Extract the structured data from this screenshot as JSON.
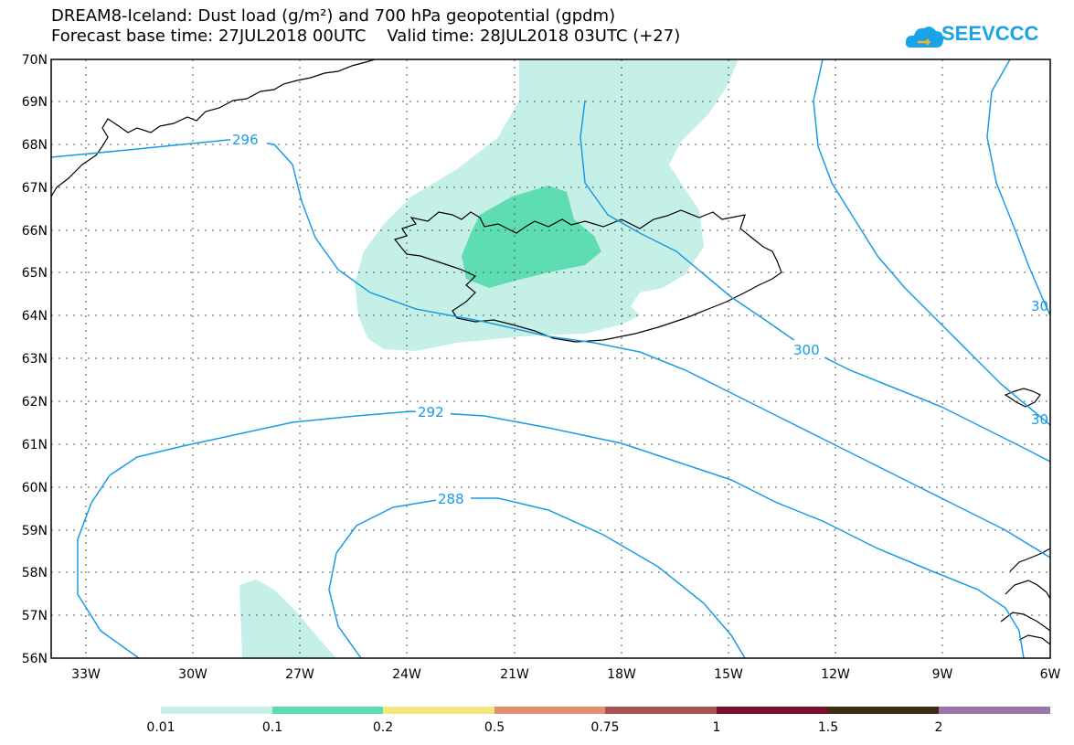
{
  "title": {
    "line1": "DREAM8-Iceland: Dust load (g/m²) and 700 hPa geopotential (gpdm)",
    "line2": "Forecast base time: 27JUL2018 00UTC    Valid time: 28JUL2018 03UTC (+27)"
  },
  "logo": {
    "text": "SEEVCCC"
  },
  "map": {
    "lat_labels": [
      "70N",
      "69N",
      "68N",
      "67N",
      "66N",
      "65N",
      "64N",
      "63N",
      "62N",
      "61N",
      "60N",
      "59N",
      "58N",
      "57N",
      "56N"
    ],
    "lon_labels": [
      "33W",
      "30W",
      "27W",
      "24W",
      "21W",
      "18W",
      "15W",
      "12W",
      "9W",
      "6W"
    ],
    "contours": [
      {
        "label": "296"
      },
      {
        "label": "300"
      },
      {
        "label": "292"
      },
      {
        "label": "288"
      },
      {
        "label": "30"
      },
      {
        "label": "30"
      }
    ],
    "dust_fill_colors": {
      "light": "#c5f0e8",
      "medium": "#5fddb2"
    },
    "contour_color": "#1a9be6"
  },
  "colorbar": {
    "labels": [
      "0.01",
      "0.1",
      "0.2",
      "0.5",
      "0.75",
      "1",
      "1.5",
      "2"
    ],
    "colors": [
      "#c5f0e8",
      "#5fddb2",
      "#f5e67e",
      "#e58f6c",
      "#a65550",
      "#7a0e2c",
      "#3f2a14",
      "#9b74aa"
    ]
  }
}
